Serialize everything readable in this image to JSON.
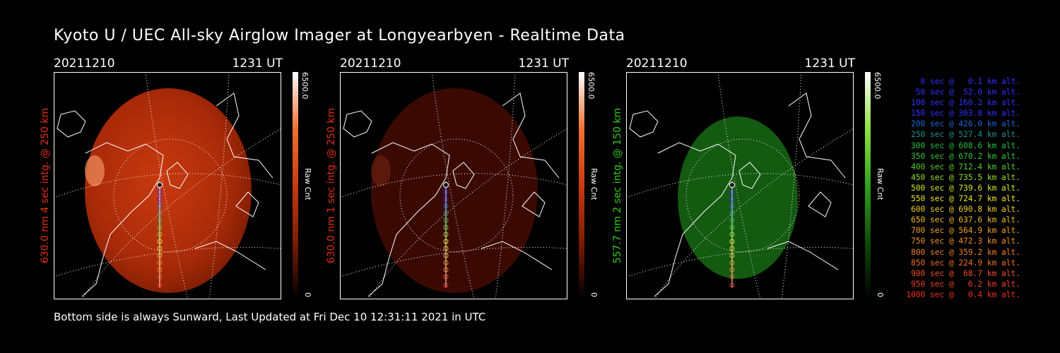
{
  "title": "Kyoto U / UEC All-sky Airglow Imager at Longyearbyen - Realtime Data",
  "footer": "Bottom side is always Sunward, Last Updated at Fri Dec 10 12:31:11 2021 in UTC",
  "panels": [
    {
      "date": "20211210",
      "time": "1231 UT",
      "ylabel": "630.0 nm 4 sec intg. @ 250 km",
      "label_color": "#e03010",
      "cbar_max": "6500.0",
      "cbar_min": "0",
      "cbar_unit": "Raw Cnt",
      "image_color": "red-bright"
    },
    {
      "date": "20211210",
      "time": "1231 UT",
      "ylabel": "630.0 nm 1 sec intg. @ 250 km",
      "label_color": "#e03010",
      "cbar_max": "6500.0",
      "cbar_min": "0",
      "cbar_unit": "Raw Cnt",
      "image_color": "red-dim"
    },
    {
      "date": "20211210",
      "time": "1231 UT",
      "ylabel": "557.7 nm 2 sec intg. @ 150 km",
      "label_color": "#30d010",
      "cbar_max": "6500.0",
      "cbar_min": "0",
      "cbar_unit": "Raw Cnt",
      "image_color": "green"
    }
  ],
  "legend": [
    {
      "text": "0 sec @   0.1 km alt.",
      "color": "#3030ff"
    },
    {
      "text": "50 sec @  52.0 km alt.",
      "color": "#3030ff"
    },
    {
      "text": "100 sec @ 160.2 km alt.",
      "color": "#3030ff"
    },
    {
      "text": "150 sec @ 303.8 km alt.",
      "color": "#3030ff"
    },
    {
      "text": "200 sec @ 426.0 km alt.",
      "color": "#1868d8"
    },
    {
      "text": "250 sec @ 527.4 km alt.",
      "color": "#209090"
    },
    {
      "text": "300 sec @ 608.6 km alt.",
      "color": "#20c040"
    },
    {
      "text": "350 sec @ 670.2 km alt.",
      "color": "#30c830"
    },
    {
      "text": "400 sec @ 712.4 km alt.",
      "color": "#50d030"
    },
    {
      "text": "450 sec @ 735.5 km alt.",
      "color": "#90e020"
    },
    {
      "text": "500 sec @ 739.6 km alt.",
      "color": "#d0e820"
    },
    {
      "text": "550 sec @ 724.7 km alt.",
      "color": "#e8e820"
    },
    {
      "text": "600 sec @ 690.8 km alt.",
      "color": "#f0d020"
    },
    {
      "text": "650 sec @ 637.6 km alt.",
      "color": "#f0b820"
    },
    {
      "text": "700 sec @ 564.9 km alt.",
      "color": "#f0a020"
    },
    {
      "text": "750 sec @ 472.3 km alt.",
      "color": "#f09020"
    },
    {
      "text": "800 sec @ 359.2 km alt.",
      "color": "#f08020"
    },
    {
      "text": "850 sec @ 224.9 km alt.",
      "color": "#f07020"
    },
    {
      "text": "900 sec @  68.7 km alt.",
      "color": "#f05020"
    },
    {
      "text": "950 sec @   6.2 km alt.",
      "color": "#f04020"
    },
    {
      "text": "1000 sec @   0.4 km alt.",
      "color": "#f03020"
    }
  ]
}
